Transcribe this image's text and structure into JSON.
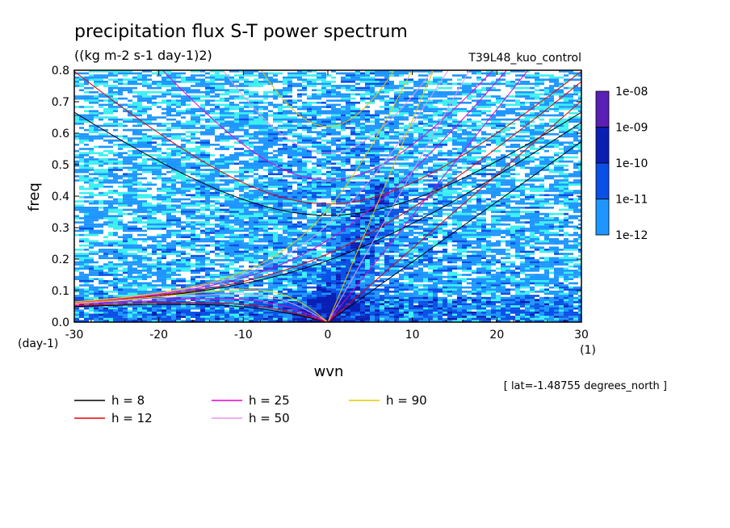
{
  "chart_data": {
    "type": "heatmap",
    "title": "precipitation flux S-T power spectrum",
    "units": "((kg m-2 s-1 day-1)2)",
    "run_label": "T39L48_kuo_control",
    "xlabel": "wvn",
    "ylabel": "freq",
    "y_unit_label": "(day-1)",
    "x_unit_label": "(1)",
    "xlim": [
      -30,
      30
    ],
    "ylim": [
      0,
      0.8
    ],
    "x_ticks": [
      -30,
      -20,
      -10,
      0,
      10,
      20,
      30
    ],
    "y_ticks": [
      0.0,
      0.1,
      0.2,
      0.3,
      0.4,
      0.5,
      0.6,
      0.7,
      0.8
    ],
    "x_tick_labels": [
      "-30",
      "-20",
      "-10",
      "0",
      "10",
      "20",
      "30"
    ],
    "y_tick_labels": [
      "0.0",
      "0.1",
      "0.2",
      "0.3",
      "0.4",
      "0.5",
      "0.6",
      "0.7",
      "0.8"
    ],
    "colorbar": {
      "labels": [
        "1e-08",
        "1e-09",
        "1e-10",
        "1e-11",
        "1e-12"
      ],
      "colors": [
        "#5a1fb4",
        "#0a1eb4",
        "#0a50e6",
        "#1e96ff",
        "#3cf0f0"
      ]
    },
    "dispersion_curves": [
      {
        "h": 8,
        "label": "h =  8",
        "color": "#000000"
      },
      {
        "h": 12,
        "label": "h = 12",
        "color": "#e60000"
      },
      {
        "h": 25,
        "label": "h = 25",
        "color": "#e600c8"
      },
      {
        "h": 50,
        "label": "h = 50",
        "color": "#e696e6"
      },
      {
        "h": 90,
        "label": "h = 90",
        "color": "#e6c800"
      }
    ],
    "footnote": "[ lat=-1.48755 degrees_north ]"
  }
}
